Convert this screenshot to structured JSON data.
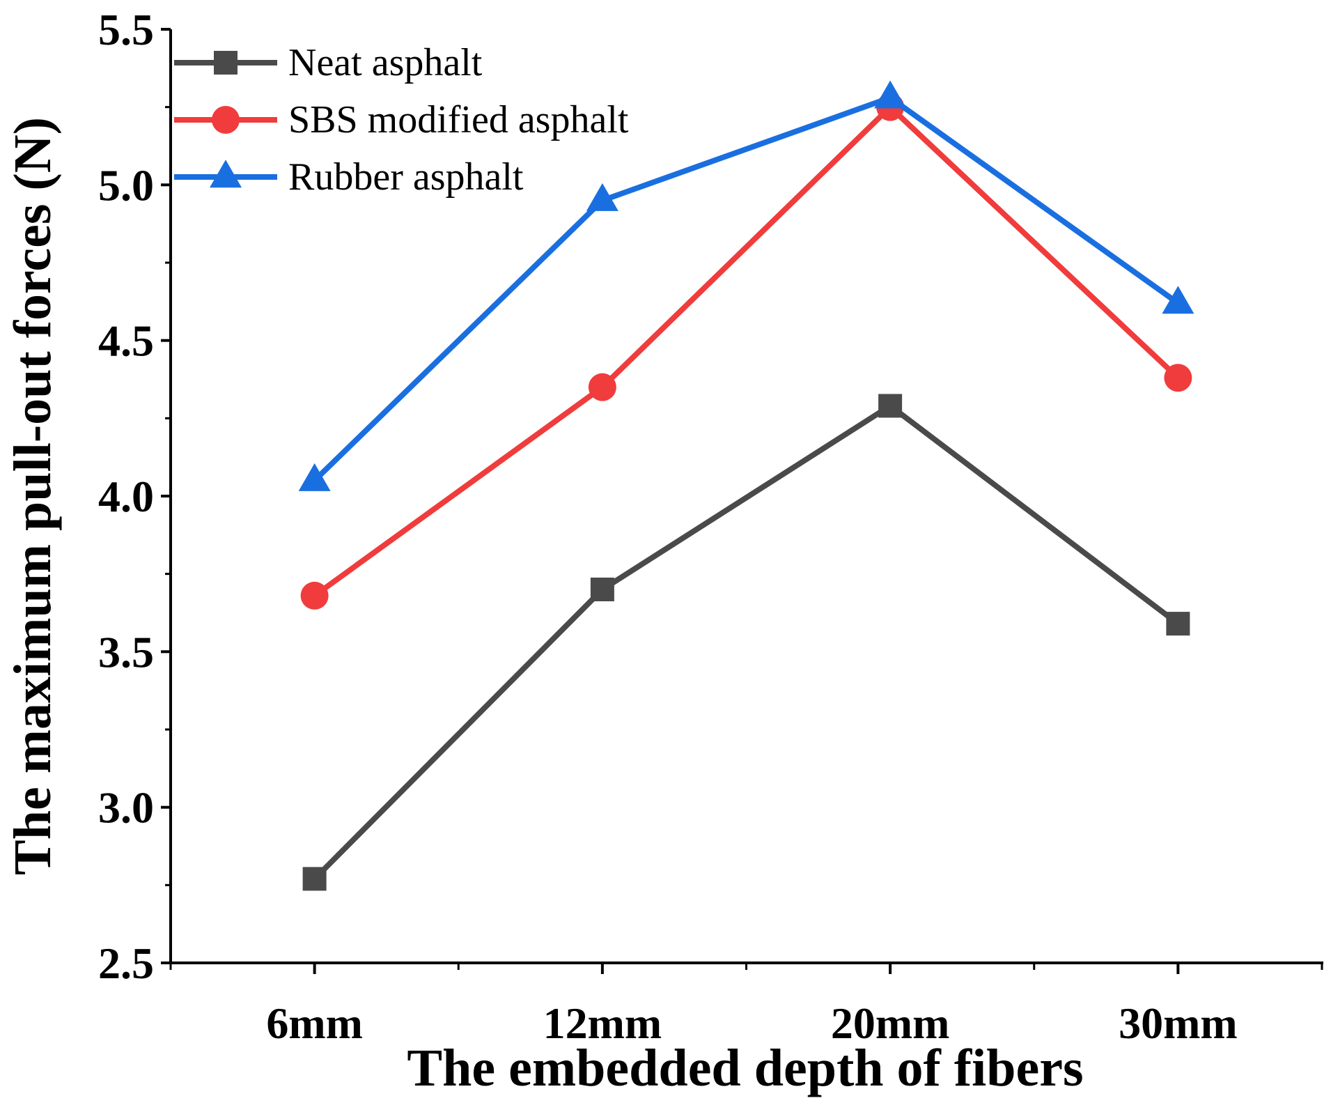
{
  "chart_data": {
    "type": "line",
    "title": "",
    "xlabel": "The embedded depth of fibers",
    "ylabel": "The maximum pull-out forces (N)",
    "categories": [
      "6mm",
      "12mm",
      "20mm",
      "30mm"
    ],
    "ylim": [
      2.5,
      5.5
    ],
    "yticks": [
      "2.5",
      "3.0",
      "3.5",
      "4.0",
      "4.5",
      "5.0",
      "5.5"
    ],
    "grid": false,
    "legend_position": "top-left",
    "series": [
      {
        "name": "Neat asphalt",
        "values": [
          2.77,
          3.7,
          4.29,
          3.59
        ],
        "color": "#4a4a4a",
        "marker": "square"
      },
      {
        "name": "SBS modified asphalt",
        "values": [
          3.68,
          4.35,
          5.25,
          4.38
        ],
        "color": "#f03c3c",
        "marker": "circle"
      },
      {
        "name": "Rubber asphalt",
        "values": [
          4.05,
          4.95,
          5.28,
          4.62
        ],
        "color": "#1a6fe0",
        "marker": "triangle"
      }
    ]
  }
}
